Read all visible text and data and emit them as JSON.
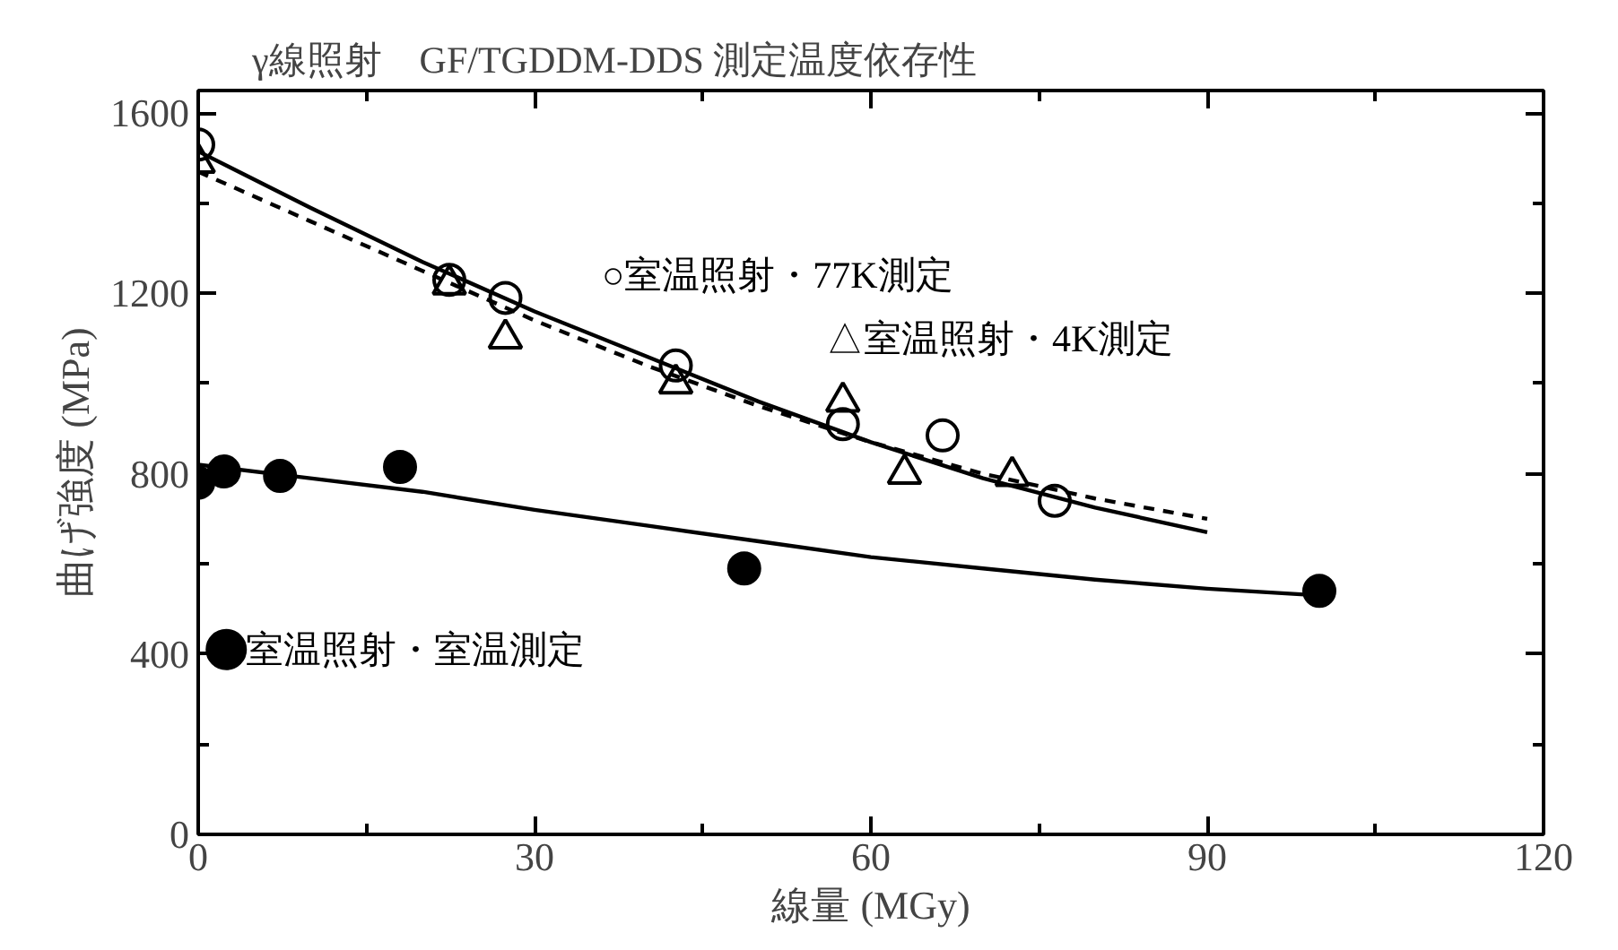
{
  "chart_data": {
    "type": "scatter",
    "title": "γ線照射　GF/TGDDM-DDS 測定温度依存性",
    "xlabel": "線量 (MGy)",
    "ylabel": "曲げ強度 (MPa)",
    "xlim": [
      0,
      120
    ],
    "xticks": [
      0,
      30,
      60,
      90,
      120
    ],
    "ylim": [
      0,
      1650
    ],
    "yticks": [
      0,
      400,
      800,
      1200,
      1600
    ],
    "grid": false,
    "series": [
      {
        "name": "○室温照射・77K測定",
        "color": "#000000",
        "marker": "circle",
        "x": [
          0,
          22.4,
          27.4,
          42.6,
          57.5,
          66.4,
          76.4
        ],
        "values": [
          1530,
          1230,
          1190,
          1040,
          910,
          885,
          740
        ]
      },
      {
        "name": "△室温照射・4K測定",
        "color": "#000000",
        "marker": "triangle",
        "x": [
          0,
          22.4,
          27.4,
          42.6,
          57.5,
          63,
          72.6
        ],
        "values": [
          1490,
          1220,
          1100,
          1000,
          960,
          800,
          795
        ]
      },
      {
        "name": "室温照射・室温測定",
        "color": "#000000",
        "marker": "circle",
        "x": [
          0,
          2.3,
          7.3,
          18,
          48.7,
          100
        ],
        "values": [
          780,
          805,
          795,
          815,
          590,
          540
        ]
      },
      {
        "type": "line",
        "line_style": "solid",
        "color": "#000000",
        "x": [
          0,
          10,
          20,
          30,
          40,
          50,
          60,
          70,
          80,
          90
        ],
        "values": [
          1515,
          1390,
          1270,
          1160,
          1060,
          960,
          870,
          790,
          725,
          670
        ]
      },
      {
        "type": "line",
        "line_style": "dashed",
        "color": "#000000",
        "x": [
          0,
          10,
          20,
          30,
          40,
          50,
          60,
          70,
          80,
          90
        ],
        "values": [
          1470,
          1360,
          1250,
          1140,
          1040,
          950,
          870,
          800,
          745,
          700
        ]
      },
      {
        "type": "line",
        "line_style": "solid",
        "color": "#000000",
        "x": [
          0,
          10,
          20,
          30,
          40,
          50,
          60,
          70,
          80,
          90,
          100
        ],
        "values": [
          820,
          790,
          760,
          720,
          685,
          650,
          615,
          590,
          565,
          545,
          530
        ]
      }
    ]
  }
}
